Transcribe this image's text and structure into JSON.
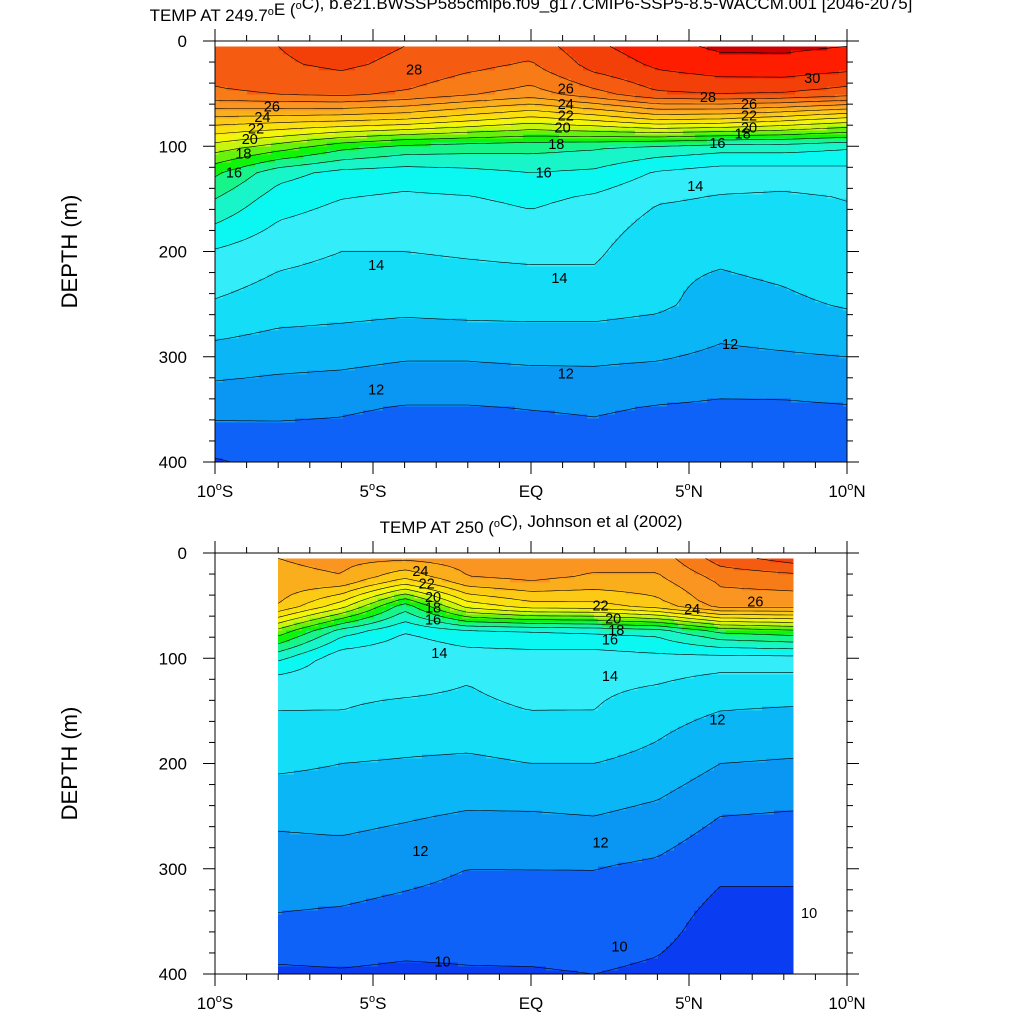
{
  "colors": {
    "levels": [
      {
        "min": 8,
        "color": "#0a3df2"
      },
      {
        "min": 10,
        "color": "#0e62f7"
      },
      {
        "min": 11,
        "color": "#0a96f3"
      },
      {
        "min": 12,
        "color": "#0ab6f5"
      },
      {
        "min": 13,
        "color": "#13ddf7"
      },
      {
        "min": 14,
        "color": "#33eef9"
      },
      {
        "min": 15,
        "color": "#0bf7f2"
      },
      {
        "min": 16,
        "color": "#18f5c8"
      },
      {
        "min": 17,
        "color": "#17f58a"
      },
      {
        "min": 18,
        "color": "#0ef50a"
      },
      {
        "min": 19,
        "color": "#66f20d"
      },
      {
        "min": 20,
        "color": "#c8f50f"
      },
      {
        "min": 21,
        "color": "#f3f50a"
      },
      {
        "min": 22,
        "color": "#fbe010"
      },
      {
        "min": 23,
        "color": "#fcc915"
      },
      {
        "min": 24,
        "color": "#fbae1c"
      },
      {
        "min": 25,
        "color": "#f99520"
      },
      {
        "min": 26,
        "color": "#f77c18"
      },
      {
        "min": 27,
        "color": "#f55c12"
      },
      {
        "min": 28,
        "color": "#f24008"
      },
      {
        "min": 29,
        "color": "#ff1d00"
      },
      {
        "min": 30,
        "color": "#cc0000"
      }
    ]
  },
  "chart_data": [
    {
      "type": "contour",
      "title": "TEMP AT 249.7°E (°C), b.e21.BWSSP585cmip6.f09_g17.CMIP6-SSP5-8.5-WACCM.001 [2046-2075]",
      "title_parts": {
        "pre": "TEMP AT 249.7",
        "deg1": "o",
        "mid": "E (",
        "deg2": "o",
        "post": "C), b.e21.BWSSP585cmip6.f09_g17.CMIP6-SSP5-8.5-WACCM.001 [2046-2075]"
      },
      "ylabel": "DEPTH (m)",
      "x_range": [
        -10,
        10
      ],
      "y_range": [
        0,
        400
      ],
      "y_reversed": true,
      "x_ticks": [
        {
          "v": -10,
          "n": "10",
          "s": "S"
        },
        {
          "v": -5,
          "n": "5",
          "s": "S"
        },
        {
          "v": 0,
          "n": "EQ",
          "s": ""
        },
        {
          "v": 5,
          "n": "5",
          "s": "N"
        },
        {
          "v": 10,
          "n": "10",
          "s": "N"
        }
      ],
      "y_ticks": [
        0,
        100,
        200,
        300,
        400
      ],
      "data_extent": {
        "lat": [
          -10,
          10
        ],
        "depth": [
          5,
          400
        ]
      },
      "lat": [
        -10,
        -8,
        -6,
        -4,
        -2,
        0,
        2,
        4,
        6,
        8,
        10
      ],
      "depth": [
        5,
        25,
        50,
        75,
        100,
        125,
        150,
        200,
        250,
        300,
        350,
        400
      ],
      "temp": [
        [
          27.6,
          28.0,
          28.3,
          28.0,
          27.6,
          27.4,
          28.8,
          29.6,
          30.2,
          30.2,
          30.0
        ],
        [
          27.5,
          27.9,
          28.1,
          27.8,
          27.2,
          26.8,
          28.3,
          29.1,
          29.5,
          29.6,
          29.3
        ],
        [
          26.8,
          27.1,
          27.3,
          26.9,
          26.2,
          25.6,
          26.7,
          27.9,
          28.1,
          28.0,
          27.5
        ],
        [
          23.6,
          23.4,
          23.2,
          22.9,
          22.2,
          21.5,
          22.1,
          23.0,
          22.8,
          22.2,
          21.5
        ],
        [
          20.6,
          19.6,
          18.4,
          17.7,
          17.5,
          17.4,
          17.2,
          16.8,
          16.5,
          16.5,
          16.2
        ],
        [
          18.2,
          16.4,
          15.7,
          15.5,
          15.7,
          16.0,
          15.8,
          14.9,
          14.5,
          14.5,
          14.6
        ],
        [
          17.0,
          15.5,
          15.0,
          14.8,
          14.9,
          15.2,
          14.8,
          14.1,
          13.9,
          13.8,
          14.0
        ],
        [
          14.9,
          14.3,
          14.0,
          14.0,
          14.1,
          14.2,
          14.2,
          13.2,
          13.2,
          13.4,
          13.8
        ],
        [
          13.9,
          13.5,
          13.4,
          13.3,
          13.4,
          13.4,
          13.4,
          13.2,
          12.6,
          12.8,
          13.1
        ],
        [
          12.6,
          12.4,
          12.3,
          12.1,
          12.1,
          12.2,
          12.2,
          12.1,
          11.8,
          11.9,
          12.0
        ],
        [
          11.3,
          11.2,
          11.1,
          10.9,
          10.9,
          11.0,
          11.1,
          10.9,
          10.8,
          10.8,
          10.9
        ],
        [
          9.9,
          10.3,
          10.4,
          10.3,
          10.3,
          10.3,
          10.4,
          10.3,
          10.2,
          10.2,
          10.3
        ]
      ],
      "contour_labels": [
        {
          "text": "28",
          "lat": -3.7,
          "depth": 27
        },
        {
          "text": "26",
          "lat": 1.1,
          "depth": 45
        },
        {
          "text": "26",
          "lat": -8.2,
          "depth": 62
        },
        {
          "text": "24",
          "lat": 1.1,
          "depth": 60
        },
        {
          "text": "24",
          "lat": -8.5,
          "depth": 72
        },
        {
          "text": "22",
          "lat": 1.1,
          "depth": 71
        },
        {
          "text": "22",
          "lat": -8.7,
          "depth": 83
        },
        {
          "text": "20",
          "lat": 1.0,
          "depth": 82
        },
        {
          "text": "20",
          "lat": -8.9,
          "depth": 93
        },
        {
          "text": "18",
          "lat": 0.8,
          "depth": 98
        },
        {
          "text": "18",
          "lat": -9.1,
          "depth": 107
        },
        {
          "text": "16",
          "lat": 0.4,
          "depth": 125
        },
        {
          "text": "16",
          "lat": -9.4,
          "depth": 125
        },
        {
          "text": "16",
          "lat": 5.9,
          "depth": 97
        },
        {
          "text": "28",
          "lat": 5.6,
          "depth": 53
        },
        {
          "text": "30",
          "lat": 8.9,
          "depth": 35
        },
        {
          "text": "26",
          "lat": 6.9,
          "depth": 60
        },
        {
          "text": "22",
          "lat": 6.9,
          "depth": 71
        },
        {
          "text": "20",
          "lat": 6.9,
          "depth": 82
        },
        {
          "text": "18",
          "lat": 6.7,
          "depth": 88
        },
        {
          "text": "14",
          "lat": 5.2,
          "depth": 138
        },
        {
          "text": "14",
          "lat": -4.9,
          "depth": 213
        },
        {
          "text": "14",
          "lat": 0.9,
          "depth": 225
        },
        {
          "text": "12",
          "lat": 6.3,
          "depth": 288
        },
        {
          "text": "12",
          "lat": 1.1,
          "depth": 316
        },
        {
          "text": "12",
          "lat": -4.9,
          "depth": 331
        }
      ]
    },
    {
      "type": "contour",
      "title": "TEMP AT 250 (°C), Johnson et al (2002)",
      "title_parts": {
        "pre": "TEMP AT 250 (",
        "deg1": "o",
        "mid": "C), Johnson et al (2002)",
        "deg2": "",
        "post": ""
      },
      "ylabel": "DEPTH (m)",
      "x_range": [
        -10,
        10
      ],
      "y_range": [
        0,
        400
      ],
      "y_reversed": true,
      "x_ticks": [
        {
          "v": -10,
          "n": "10",
          "s": "S"
        },
        {
          "v": -5,
          "n": "5",
          "s": "S"
        },
        {
          "v": 0,
          "n": "EQ",
          "s": ""
        },
        {
          "v": 5,
          "n": "5",
          "s": "N"
        },
        {
          "v": 10,
          "n": "10",
          "s": "N"
        }
      ],
      "y_ticks": [
        0,
        100,
        200,
        300,
        400
      ],
      "data_extent": {
        "lat": [
          -8,
          8.3
        ],
        "depth": [
          5,
          400
        ]
      },
      "lat": [
        -8,
        -6,
        -4,
        -2,
        0,
        2,
        4,
        6,
        8.3
      ],
      "depth": [
        5,
        25,
        50,
        75,
        100,
        125,
        150,
        200,
        250,
        300,
        350,
        400
      ],
      "temp": [
        [
          25.0,
          25.3,
          25.2,
          25.5,
          25.6,
          25.4,
          25.4,
          27.5,
          28.5
        ],
        [
          24.7,
          24.9,
          23.0,
          24.9,
          25.2,
          24.8,
          24.8,
          26.2,
          26.4
        ],
        [
          24.0,
          21.5,
          17.5,
          21.5,
          22.6,
          22.7,
          23.6,
          25.5,
          25.5
        ],
        [
          19.5,
          16.4,
          15.0,
          15.7,
          15.8,
          16.0,
          16.3,
          18.0,
          18.5
        ],
        [
          16.2,
          14.3,
          14.2,
          14.5,
          14.6,
          14.5,
          14.7,
          14.6,
          14.6
        ],
        [
          14.3,
          14.2,
          14.2,
          14.0,
          14.3,
          14.2,
          14.0,
          13.5,
          13.5
        ],
        [
          14.0,
          14.0,
          13.8,
          13.8,
          14.0,
          14.0,
          13.4,
          13.0,
          12.9
        ],
        [
          13.2,
          13.0,
          12.9,
          12.8,
          13.0,
          13.0,
          12.7,
          12.0,
          11.9
        ],
        [
          12.2,
          12.3,
          12.1,
          11.9,
          11.9,
          12.0,
          11.7,
          11.0,
          10.9
        ],
        [
          11.5,
          11.5,
          11.3,
          11.0,
          11.0,
          11.0,
          10.8,
          10.2,
          10.2
        ],
        [
          10.9,
          10.8,
          10.6,
          10.5,
          10.6,
          10.7,
          10.4,
          9.6,
          9.6
        ],
        [
          9.8,
          9.9,
          9.8,
          9.9,
          9.9,
          10.0,
          9.8,
          9.4,
          9.4
        ]
      ],
      "contour_labels": [
        {
          "text": "24",
          "lat": -3.5,
          "depth": 17
        },
        {
          "text": "22",
          "lat": -3.3,
          "depth": 29
        },
        {
          "text": "20",
          "lat": -3.1,
          "depth": 42
        },
        {
          "text": "18",
          "lat": -3.1,
          "depth": 52
        },
        {
          "text": "16",
          "lat": -3.1,
          "depth": 63
        },
        {
          "text": "22",
          "lat": 2.2,
          "depth": 50
        },
        {
          "text": "20",
          "lat": 2.6,
          "depth": 62
        },
        {
          "text": "18",
          "lat": 2.7,
          "depth": 73
        },
        {
          "text": "16",
          "lat": 2.5,
          "depth": 82
        },
        {
          "text": "24",
          "lat": 5.1,
          "depth": 53
        },
        {
          "text": "26",
          "lat": 7.1,
          "depth": 46
        },
        {
          "text": "14",
          "lat": -2.9,
          "depth": 95
        },
        {
          "text": "14",
          "lat": 2.5,
          "depth": 117
        },
        {
          "text": "12",
          "lat": 5.9,
          "depth": 158
        },
        {
          "text": "12",
          "lat": -3.5,
          "depth": 283
        },
        {
          "text": "12",
          "lat": 2.2,
          "depth": 275
        },
        {
          "text": "10",
          "lat": 8.8,
          "depth": 342
        },
        {
          "text": "10",
          "lat": 2.8,
          "depth": 374
        },
        {
          "text": "10",
          "lat": -2.8,
          "depth": 388
        }
      ]
    }
  ]
}
